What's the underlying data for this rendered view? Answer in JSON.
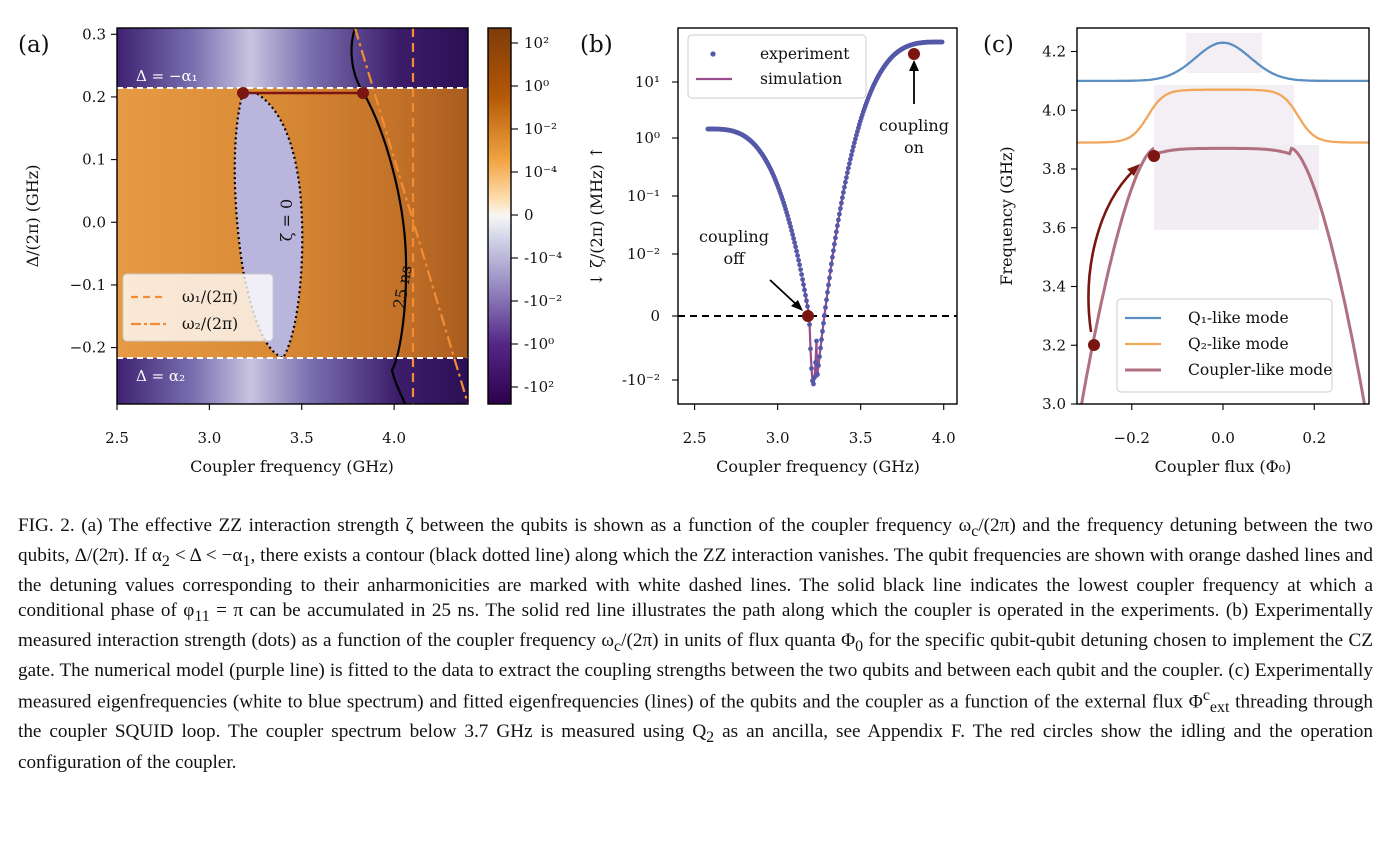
{
  "panel_a": {
    "label": "(a)",
    "xlabel": "Coupler frequency (GHz)",
    "ylabel": "Δ/(2π) (GHz)",
    "xticks": [
      "2.5",
      "3.0",
      "3.5",
      "4.0"
    ],
    "yticks": [
      "0.3",
      "0.2",
      "0.1",
      "0.0",
      "−0.1",
      "−0.2"
    ],
    "colorbar_ticks": [
      "10²",
      "10⁰",
      "10⁻²",
      "10⁻⁴",
      "0",
      "-10⁻⁴",
      "-10⁻²",
      "-10⁰",
      "-10²"
    ],
    "band_top_label": "Δ = −α₁",
    "band_bottom_label": "Δ = α₂",
    "zero_contour_label": "ζ = 0",
    "time_contour_label": "25 ns",
    "legend": [
      "ω₁/(2π)",
      "ω₂/(2π)"
    ],
    "colors": {
      "positive": "#b8661f",
      "negative": "#3f1f6b",
      "q1": "#f28d35",
      "q2": "#f28d35",
      "marker": "#7a1510"
    }
  },
  "panel_b": {
    "label": "(b)",
    "xlabel": "Coupler frequency (GHz)",
    "ylabel": "↓ ζ/(2π) (MHz) ↑",
    "xticks": [
      "2.5",
      "3.0",
      "3.5",
      "4.0"
    ],
    "yticks": [
      "10¹",
      "10⁰",
      "10⁻¹",
      "10⁻²",
      "0",
      "-10⁻²"
    ],
    "legend": [
      "experiment",
      "simulation"
    ],
    "annotation_on": [
      "coupling",
      "on"
    ],
    "annotation_off": [
      "coupling",
      "off"
    ],
    "colors": {
      "experiment": "#5558a8",
      "simulation": "#9a4d8c",
      "marker": "#7a1510"
    }
  },
  "panel_c": {
    "label": "(c)",
    "xlabel": "Coupler flux (Φ₀)",
    "ylabel": "Frequency (GHz)",
    "xticks": [
      "−0.2",
      "0.0",
      "0.2"
    ],
    "yticks": [
      "4.2",
      "4.0",
      "3.8",
      "3.6",
      "3.4",
      "3.2",
      "3.0"
    ],
    "legend": [
      "Q₁-like mode",
      "Q₂-like mode",
      "Coupler-like mode"
    ],
    "colors": {
      "q1": "#5b8fc2",
      "q2": "#f2a65a",
      "coupler": "#b07080",
      "marker": "#7a1510"
    }
  },
  "chart_data": [
    {
      "type": "heatmap",
      "panel": "a",
      "xlabel": "Coupler frequency (GHz)",
      "ylabel": "Δ/(2π) (GHz)",
      "xlim": [
        2.5,
        4.4
      ],
      "ylim": [
        -0.29,
        0.31
      ],
      "band_edges": [
        -0.215,
        0.215
      ],
      "zero_contour_label": "ζ = 0",
      "time_contour_label": "25 ns",
      "operating_points": [
        {
          "x": 3.19,
          "y": 0.21
        },
        {
          "x": 3.84,
          "y": 0.21
        }
      ]
    },
    {
      "type": "scatter",
      "panel": "b",
      "xlabel": "Coupler frequency (GHz)",
      "ylabel": "↓ ζ/(2π) (MHz) ↑",
      "xlim": [
        2.4,
        4.08
      ],
      "x": [
        2.58,
        2.8,
        3.0,
        3.1,
        3.15,
        3.19,
        3.21,
        3.23,
        3.26,
        3.3,
        3.4,
        3.6,
        3.84,
        3.99
      ],
      "y_labels_estimated": [
        "1.5",
        "1",
        "0.5",
        "0.1",
        "0.01",
        "0",
        "-0.02",
        "0.01",
        "0.1",
        "0.5",
        "2",
        "6",
        "30",
        "40"
      ],
      "operating_points": [
        {
          "x": 3.19,
          "y": 0
        },
        {
          "x": 3.84,
          "y": 30
        }
      ]
    },
    {
      "type": "line",
      "panel": "c",
      "xlabel": "Coupler flux (Φ₀)",
      "ylabel": "Frequency (GHz)",
      "xlim": [
        -0.32,
        0.32
      ],
      "ylim": [
        3.0,
        4.28
      ],
      "series": [
        {
          "name": "Q₁-like mode",
          "x": [
            -0.32,
            -0.2,
            -0.1,
            0.0,
            0.1,
            0.2,
            0.32
          ],
          "y": [
            4.1,
            4.11,
            4.17,
            4.23,
            4.17,
            4.11,
            4.1
          ]
        },
        {
          "name": "Q₂-like mode",
          "x": [
            -0.32,
            -0.2,
            -0.1,
            0.0,
            0.1,
            0.2,
            0.32
          ],
          "y": [
            3.89,
            3.9,
            4.06,
            4.07,
            4.06,
            3.9,
            3.89
          ]
        },
        {
          "name": "Coupler-like mode",
          "x": [
            -0.31,
            -0.25,
            -0.2,
            -0.15,
            0.0,
            0.15,
            0.2,
            0.25,
            0.31
          ],
          "y": [
            3.0,
            3.4,
            3.7,
            3.85,
            3.87,
            3.85,
            3.7,
            3.4,
            3.0
          ]
        }
      ],
      "operating_points": [
        {
          "x": -0.3,
          "y": 3.2
        },
        {
          "x": -0.16,
          "y": 3.84
        }
      ]
    }
  ],
  "caption": [
    "FIG. 2. (a) The effective ZZ interaction strength ζ between the qubits is shown as a function of the coupler frequency ω",
    "c",
    "/(2π) and the frequency detuning between the two qubits, Δ/(2π). If α",
    "2",
    " < Δ < −α",
    "1",
    ", there exists a contour (black dotted line) along which the ZZ interaction vanishes. The qubit frequencies are shown with orange dashed lines and the detuning values corresponding to their anharmonicities are marked with white dashed lines. The solid black line indicates the lowest coupler frequency at which a conditional phase of φ",
    "11",
    " = π can be accumulated in 25 ns. The solid red line illustrates the path along which the coupler is operated in the experiments. (b) Experimentally measured interaction strength (dots) as a function of the coupler frequency ω",
    "c",
    "/(2π) in units of flux quanta Φ",
    "0",
    " for the specific qubit-qubit detuning chosen to implement the CZ gate. The numerical model (purple line) is fitted to the data to extract the coupling strengths between the two qubits and between each qubit and the coupler. (c) Experimentally measured eigenfrequencies (white to blue spectrum) and fitted eigenfrequencies (lines) of the qubits and the coupler as a function of the external flux Φ",
    "c",
    "ext",
    " threading through the coupler SQUID loop. The coupler spectrum below 3.7 GHz is measured using Q",
    "2",
    " as an ancilla, see Appendix F. The red circles show the idling and the operation configuration of the coupler."
  ]
}
